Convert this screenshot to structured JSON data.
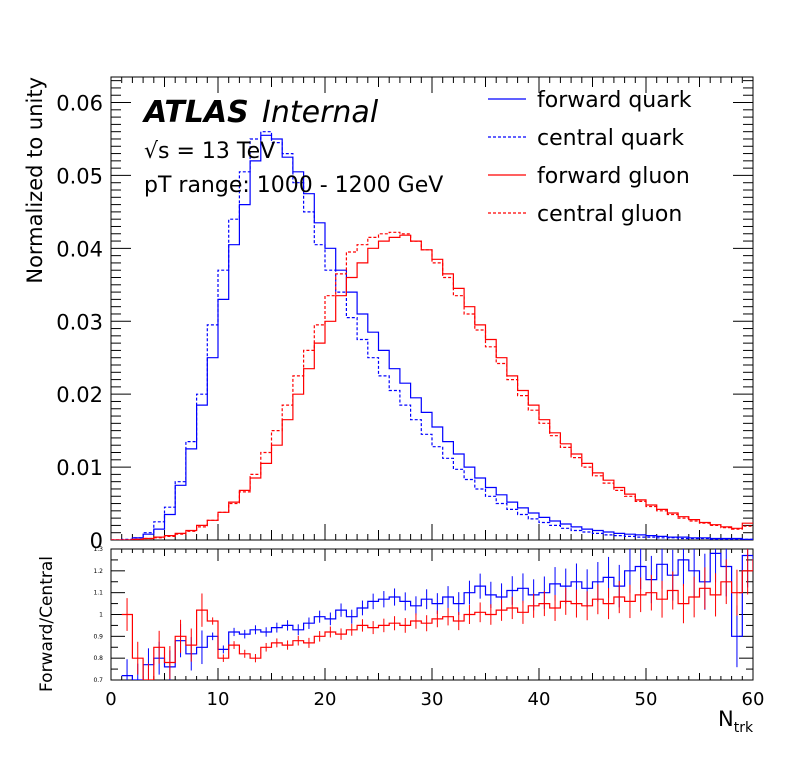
{
  "chart_data": [
    {
      "type": "line",
      "panel": "main",
      "ylabel": "Normalized to unity",
      "xlim": [
        0,
        60
      ],
      "ylim": [
        0,
        0.0635
      ],
      "y_ticks": [
        "0",
        "0.01",
        "0.02",
        "0.03",
        "0.04",
        "0.05",
        "0.06"
      ],
      "annotations": {
        "experiment": "ATLAS",
        "status": "Internal",
        "energy": "√s = 13 TeV",
        "range": "pT range: 1000 - 1200 GeV"
      },
      "legend_position": "top-right",
      "bin_edges_start": 0,
      "bin_width": 1,
      "series": [
        {
          "name": "forward quark",
          "color": "#0000ff",
          "style": "solid",
          "values": [
            0,
            0,
            0.0003,
            0.0008,
            0.0015,
            0.0035,
            0.0075,
            0.0125,
            0.0185,
            0.025,
            0.033,
            0.0405,
            0.046,
            0.052,
            0.0555,
            0.055,
            0.0525,
            0.0505,
            0.0475,
            0.0435,
            0.04,
            0.037,
            0.034,
            0.031,
            0.0285,
            0.026,
            0.0235,
            0.0215,
            0.0195,
            0.0175,
            0.0155,
            0.0135,
            0.0118,
            0.01,
            0.0085,
            0.0072,
            0.0062,
            0.0052,
            0.0044,
            0.0037,
            0.0031,
            0.0026,
            0.0022,
            0.0018,
            0.0015,
            0.0013,
            0.0011,
            0.0009,
            0.0008,
            0.0007,
            0.0006,
            0.0005,
            0.0004,
            0.0004,
            0.0003,
            0.0003,
            0.0002,
            0.0002,
            0.0002,
            0.0001
          ]
        },
        {
          "name": "central quark",
          "color": "#0000ff",
          "style": "dashed",
          "values": [
            0,
            0.0001,
            0.0003,
            0.001,
            0.0025,
            0.0045,
            0.008,
            0.0135,
            0.02,
            0.0295,
            0.037,
            0.044,
            0.0505,
            0.055,
            0.056,
            0.0545,
            0.053,
            0.049,
            0.045,
            0.0405,
            0.037,
            0.034,
            0.0305,
            0.0275,
            0.025,
            0.0225,
            0.0205,
            0.0185,
            0.0165,
            0.0145,
            0.0128,
            0.0112,
            0.0097,
            0.0083,
            0.007,
            0.006,
            0.005,
            0.0042,
            0.0035,
            0.0029,
            0.0024,
            0.002,
            0.0016,
            0.0013,
            0.0011,
            0.0009,
            0.0007,
            0.0006,
            0.0005,
            0.0004,
            0.0004,
            0.0003,
            0.0003,
            0.0002,
            0.0002,
            0.0002,
            0.0001,
            0.0001,
            0.0001,
            0.0001
          ]
        },
        {
          "name": "forward gluon",
          "color": "#ff0000",
          "style": "solid",
          "values": [
            0,
            0,
            0.0001,
            0.0002,
            0.0004,
            0.0006,
            0.0009,
            0.0013,
            0.002,
            0.0027,
            0.0038,
            0.0052,
            0.0068,
            0.0085,
            0.0105,
            0.013,
            0.0165,
            0.02,
            0.0235,
            0.027,
            0.03,
            0.0335,
            0.036,
            0.038,
            0.04,
            0.041,
            0.0415,
            0.0418,
            0.041,
            0.0398,
            0.0385,
            0.0365,
            0.0345,
            0.032,
            0.0295,
            0.0275,
            0.025,
            0.0225,
            0.0205,
            0.0185,
            0.0165,
            0.0147,
            0.0132,
            0.0118,
            0.0105,
            0.0092,
            0.0082,
            0.0072,
            0.0063,
            0.0055,
            0.0048,
            0.0042,
            0.0037,
            0.0032,
            0.0028,
            0.0024,
            0.0021,
            0.0018,
            0.0016,
            0.0023
          ]
        },
        {
          "name": "central gluon",
          "color": "#ff0000",
          "style": "dashed",
          "values": [
            0,
            0,
            0.0001,
            0.0002,
            0.0003,
            0.0005,
            0.0008,
            0.0012,
            0.0018,
            0.0027,
            0.0038,
            0.005,
            0.0066,
            0.009,
            0.012,
            0.015,
            0.0185,
            0.0225,
            0.026,
            0.0295,
            0.0335,
            0.0365,
            0.0395,
            0.0405,
            0.0415,
            0.042,
            0.0422,
            0.042,
            0.041,
            0.0398,
            0.038,
            0.036,
            0.0335,
            0.031,
            0.0288,
            0.0265,
            0.0242,
            0.022,
            0.0198,
            0.0178,
            0.016,
            0.0143,
            0.0127,
            0.0113,
            0.01,
            0.0088,
            0.0078,
            0.0068,
            0.006,
            0.0053,
            0.0046,
            0.004,
            0.0035,
            0.003,
            0.0026,
            0.0023,
            0.002,
            0.0017,
            0.0015,
            0.0019
          ]
        }
      ]
    },
    {
      "type": "line",
      "panel": "ratio",
      "ylabel": "Forward/Central",
      "xlabel": "N",
      "xlabel_sub": "trk",
      "xlim": [
        0,
        60
      ],
      "ylim": [
        0.7,
        1.3
      ],
      "x_ticks": [
        "0",
        "10",
        "20",
        "30",
        "40",
        "50",
        "60"
      ],
      "y_ticks": [
        "0.7",
        "0.8",
        "0.9",
        "1",
        "1.1",
        "1.2",
        "1.3"
      ],
      "bin_edges_start": 1,
      "bin_width": 1,
      "series": [
        {
          "name": "forward quark",
          "color": "#0000ff",
          "values": [
            0.72,
            0.7,
            0.77,
            0.8,
            0.76,
            0.88,
            0.82,
            0.85,
            0.9,
            0.84,
            0.92,
            0.91,
            0.93,
            0.92,
            0.94,
            0.95,
            0.93,
            0.96,
            0.99,
            0.98,
            1.02,
            0.99,
            1.03,
            1.06,
            1.07,
            1.08,
            1.06,
            1.04,
            1.07,
            1.05,
            1.08,
            1.05,
            1.1,
            1.13,
            1.09,
            1.08,
            1.11,
            1.12,
            1.09,
            1.1,
            1.14,
            1.13,
            1.15,
            1.12,
            1.15,
            1.17,
            1.13,
            1.2,
            1.22,
            1.16,
            1.23,
            1.18,
            1.25,
            1.2,
            1.15,
            1.28,
            1.22,
            0.9,
            1.27,
            1.2
          ]
        },
        {
          "name": "forward gluon",
          "color": "#ff0000",
          "values": [
            1.0,
            0.8,
            0.7,
            0.85,
            0.78,
            0.9,
            0.86,
            1.02,
            0.97,
            0.8,
            0.86,
            0.82,
            0.8,
            0.85,
            0.87,
            0.86,
            0.88,
            0.87,
            0.9,
            0.92,
            0.91,
            0.93,
            0.95,
            0.94,
            0.95,
            0.96,
            0.95,
            0.97,
            0.96,
            0.98,
            0.99,
            0.97,
            1.0,
            1.01,
            1.0,
            1.02,
            1.03,
            1.01,
            1.04,
            1.05,
            1.03,
            1.06,
            1.05,
            1.04,
            1.07,
            1.05,
            1.08,
            1.06,
            1.09,
            1.1,
            1.07,
            1.11,
            1.05,
            1.08,
            1.12,
            1.09,
            1.15,
            1.1,
            1.2,
            1.25
          ]
        }
      ]
    }
  ]
}
